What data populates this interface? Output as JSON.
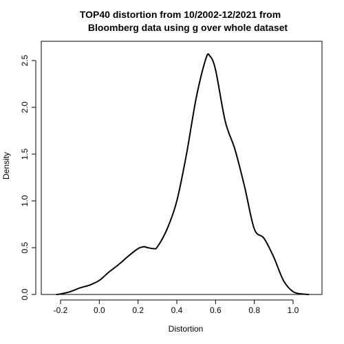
{
  "chart_data": {
    "type": "line",
    "title_lines": [
      "TOP40 distortion from 10/2002-12/2021 from",
      "Bloomberg data using g over whole dataset"
    ],
    "xlabel": "Distortion",
    "ylabel": "Density",
    "xlim": [
      -0.25,
      1.1
    ],
    "ylim": [
      0,
      2.6
    ],
    "x_ticks": [
      -0.2,
      0.0,
      0.2,
      0.4,
      0.6,
      0.8,
      1.0
    ],
    "x_tick_labels": [
      "-0.2",
      "0.0",
      "0.2",
      "0.4",
      "0.6",
      "0.8",
      "1.0"
    ],
    "y_ticks": [
      0.0,
      0.5,
      1.0,
      1.5,
      2.0,
      2.5
    ],
    "y_tick_labels": [
      "0.0",
      "0.5",
      "1.0",
      "1.5",
      "2.0",
      "2.5"
    ],
    "grid": false,
    "line_color": "#000000",
    "series": [
      {
        "x": [
          -0.22,
          -0.2,
          -0.15,
          -0.1,
          -0.05,
          0.0,
          0.05,
          0.1,
          0.15,
          0.2,
          0.23,
          0.25,
          0.28,
          0.3,
          0.35,
          0.4,
          0.45,
          0.5,
          0.55,
          0.57,
          0.6,
          0.65,
          0.7,
          0.75,
          0.8,
          0.85,
          0.9,
          0.95,
          1.0,
          1.05,
          1.08
        ],
        "y": [
          0.0,
          0.005,
          0.03,
          0.07,
          0.1,
          0.15,
          0.24,
          0.32,
          0.41,
          0.49,
          0.51,
          0.5,
          0.49,
          0.51,
          0.7,
          1.0,
          1.5,
          2.1,
          2.52,
          2.55,
          2.4,
          1.85,
          1.55,
          1.15,
          0.7,
          0.6,
          0.4,
          0.15,
          0.03,
          0.005,
          0.0
        ]
      }
    ]
  }
}
